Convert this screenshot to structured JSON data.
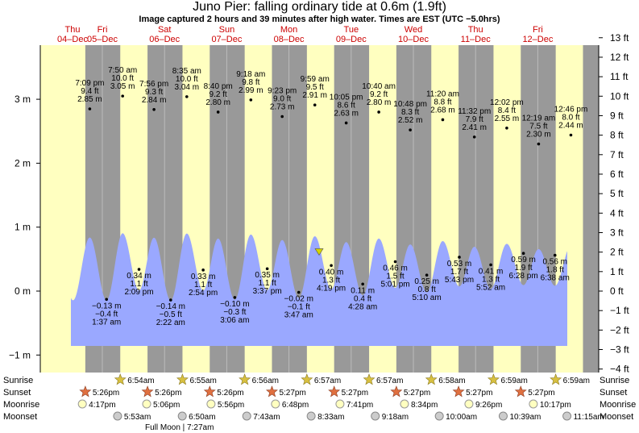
{
  "title": "Juno Pier: falling  ordinary tide at 0.6m (1.9ft)",
  "subtitle": "Image captured 2 hours and 39 minutes after high water. Times are EST (UTC −5.0hrs)",
  "colors": {
    "day": "#ffffc0",
    "night": "#999999",
    "water": "#9aa8ff",
    "date_text": "#cc0000",
    "marker": "#d4d400"
  },
  "chart_data": {
    "type": "area",
    "title": "Juno Pier: falling  ordinary tide at 0.6m (1.9ft)",
    "days": [
      {
        "dow": "Thu",
        "date": "04–Dec"
      },
      {
        "dow": "Fri",
        "date": "05–Dec"
      },
      {
        "dow": "Sat",
        "date": "06–Dec"
      },
      {
        "dow": "Sun",
        "date": "07–Dec"
      },
      {
        "dow": "Mon",
        "date": "08–Dec"
      },
      {
        "dow": "Tue",
        "date": "09–Dec"
      },
      {
        "dow": "Wed",
        "date": "10–Dec"
      },
      {
        "dow": "Thu",
        "date": "11–Dec"
      },
      {
        "dow": "Fri",
        "date": "12–Dec"
      }
    ],
    "y_left": {
      "unit": "m",
      "ticks": [
        "−1 m",
        "0 m",
        "1 m",
        "2 m",
        "3 m"
      ],
      "range": [
        -1.28,
        3.85
      ]
    },
    "y_right": {
      "unit": "ft",
      "ticks": [
        "−4 ft",
        "−3 ft",
        "−2 ft",
        "−1 ft",
        "0 ft",
        "1 ft",
        "2 ft",
        "3 ft",
        "4 ft",
        "5 ft",
        "6 ft",
        "7 ft",
        "8 ft",
        "9 ft",
        "10 ft",
        "11 ft",
        "12 ft",
        "13 ft"
      ]
    },
    "current": {
      "label": "falling",
      "height_m": 0.6,
      "height_ft": 1.9
    },
    "high_tides": [
      {
        "time": "7:09 pm",
        "ft": "9.4 ft",
        "m": "2.85 m"
      },
      {
        "time": "7:50 am",
        "ft": "10.0 ft",
        "m": "3.05 m"
      },
      {
        "time": "7:56 pm",
        "ft": "9.3 ft",
        "m": "2.84 m"
      },
      {
        "time": "8:35 am",
        "ft": "10.0 ft",
        "m": "3.04 m"
      },
      {
        "time": "8:40 pm",
        "ft": "9.2 ft",
        "m": "2.80 m"
      },
      {
        "time": "9:18 am",
        "ft": "9.8 ft",
        "m": "2.99 m"
      },
      {
        "time": "9:23 pm",
        "ft": "9.0 ft",
        "m": "2.73 m"
      },
      {
        "time": "9:59 am",
        "ft": "9.5 ft",
        "m": "2.91 m"
      },
      {
        "time": "10:05 pm",
        "ft": "8.6 ft",
        "m": "2.63 m"
      },
      {
        "time": "10:40 am",
        "ft": "9.2 ft",
        "m": "2.80 m"
      },
      {
        "time": "10:48 pm",
        "ft": "8.3 ft",
        "m": "2.52 m"
      },
      {
        "time": "11:20 am",
        "ft": "8.8 ft",
        "m": "2.68 m"
      },
      {
        "time": "11:32 pm",
        "ft": "7.9 ft",
        "m": "2.41 m"
      },
      {
        "time": "12:02 pm",
        "ft": "8.4 ft",
        "m": "2.55 m"
      },
      {
        "time": "12:19 am",
        "ft": "7.5 ft",
        "m": "2.30 m"
      },
      {
        "time": "12:46 pm",
        "ft": "8.0 ft",
        "m": "2.44 m"
      }
    ],
    "low_tides": [
      {
        "time": "1:37 am",
        "ft": "−0.4 ft",
        "m": "−0.13 m"
      },
      {
        "time": "2:09 pm",
        "ft": "1.1 ft",
        "m": "0.34 m"
      },
      {
        "time": "2:22 am",
        "ft": "−0.5 ft",
        "m": "−0.14 m"
      },
      {
        "time": "2:54 pm",
        "ft": "1.1 ft",
        "m": "0.33 m"
      },
      {
        "time": "3:06 am",
        "ft": "−0.3 ft",
        "m": "−0.10 m"
      },
      {
        "time": "3:37 pm",
        "ft": "1.1 ft",
        "m": "0.35 m"
      },
      {
        "time": "3:47 am",
        "ft": "−0.1 ft",
        "m": "−0.02 m"
      },
      {
        "time": "4:19 pm",
        "ft": "1.3 ft",
        "m": "0.40 m"
      },
      {
        "time": "4:28 am",
        "ft": "0.4 ft",
        "m": "0.11 m"
      },
      {
        "time": "5:01 pm",
        "ft": "1.5 ft",
        "m": "0.46 m"
      },
      {
        "time": "5:10 am",
        "ft": "0.8 ft",
        "m": "0.25 m"
      },
      {
        "time": "5:43 pm",
        "ft": "1.7 ft",
        "m": "0.53 m"
      },
      {
        "time": "5:52 am",
        "ft": "1.3 ft",
        "m": "0.41 m"
      },
      {
        "time": "6:28 pm",
        "ft": "1.9 ft",
        "m": "0.59 m"
      },
      {
        "time": "6:38 am",
        "ft": "1.8 ft",
        "m": "0.56 m"
      }
    ],
    "sunrise": [
      "6:54am",
      "6:55am",
      "6:56am",
      "6:57am",
      "6:57am",
      "6:58am",
      "6:59am",
      "6:59am"
    ],
    "sunset": [
      "5:26pm",
      "5:26pm",
      "5:26pm",
      "5:27pm",
      "5:27pm",
      "5:27pm",
      "5:27pm",
      "5:27pm"
    ],
    "moonrise": [
      "4:17pm",
      "5:06pm",
      "5:56pm",
      "6:48pm",
      "7:41pm",
      "8:34pm",
      "9:26pm",
      "10:17pm"
    ],
    "moonset": [
      "5:53am",
      "6:50am",
      "7:43am",
      "8:33am",
      "9:18am",
      "10:00am",
      "10:39am",
      "11:15am"
    ],
    "moon_phase": "Full Moon | 7:27am",
    "row_labels": {
      "sunrise": "Sunrise",
      "sunset": "Sunset",
      "moonrise": "Moonrise",
      "moonset": "Moonset"
    }
  }
}
